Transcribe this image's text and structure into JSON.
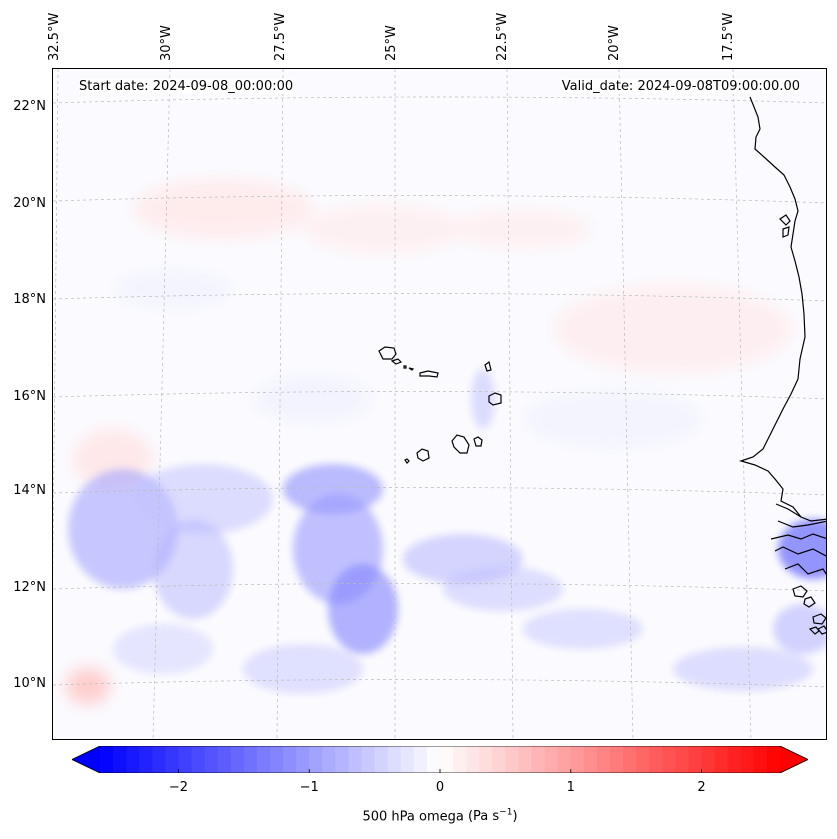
{
  "map": {
    "start_label": "Start date: 2024-09-08_00:00:00",
    "valid_label": "Valid_date: 2024-09-08T09:00:00.00",
    "variable": "500 hPa omega",
    "units_prefix": "(Pa s",
    "units_exp": "−1",
    "units_suffix": ")",
    "longitude_labels": [
      "32.5°W",
      "30°W",
      "27.5°W",
      "25°W",
      "22.5°W",
      "20°W",
      "17.5°W"
    ],
    "latitude_labels": [
      "22°N",
      "20°N",
      "18°N",
      "16°N",
      "14°N",
      "12°N",
      "10°N"
    ],
    "colorbar": {
      "min": -2.6,
      "max": 2.6,
      "ticks": [
        "−2",
        "−1",
        "0",
        "1",
        "2"
      ],
      "tick_values": [
        -2,
        -1,
        0,
        1,
        2
      ],
      "negative_color": "#0000ff",
      "positive_color": "#ff0000",
      "extend": "both"
    },
    "gridlines": "dashed grey",
    "coastline_color": "#000000"
  }
}
